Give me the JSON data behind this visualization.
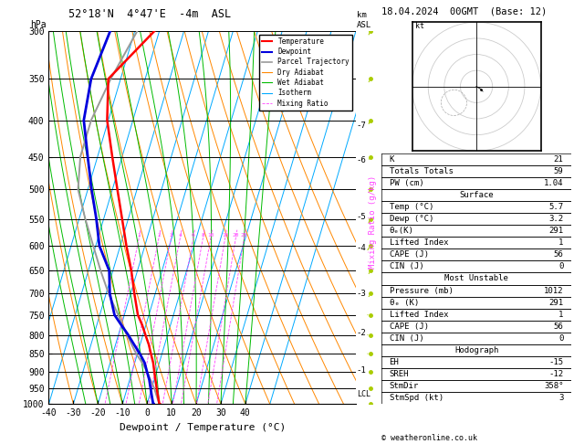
{
  "title_left": "52°18'N  4°47'E  -4m  ASL",
  "title_right": "18.04.2024  00GMT  (Base: 12)",
  "xlabel": "Dewpoint / Temperature (°C)",
  "pressure_levels": [
    300,
    350,
    400,
    450,
    500,
    550,
    600,
    650,
    700,
    750,
    800,
    850,
    900,
    950,
    1000
  ],
  "mixing_ratio_color": "#ff44ff",
  "isotherm_color": "#00aaff",
  "dry_adiabat_color": "#ff8800",
  "wet_adiabat_color": "#00bb00",
  "temp_color": "#ff0000",
  "dewp_color": "#0000dd",
  "parcel_color": "#999999",
  "temp_profile": {
    "pressure": [
      1012,
      1000,
      975,
      950,
      925,
      900,
      875,
      850,
      825,
      800,
      775,
      750,
      700,
      650,
      600,
      550,
      500,
      450,
      400,
      350,
      300
    ],
    "temperature": [
      5.7,
      5.0,
      3.5,
      2.0,
      0.5,
      -1.0,
      -2.5,
      -4.5,
      -6.5,
      -9.0,
      -11.5,
      -14.5,
      -18.5,
      -22.5,
      -27.5,
      -32.5,
      -38.0,
      -44.0,
      -50.5,
      -55.0,
      -42.0
    ]
  },
  "dewp_profile": {
    "pressure": [
      1012,
      1000,
      975,
      950,
      925,
      900,
      875,
      850,
      825,
      800,
      775,
      750,
      700,
      650,
      600,
      550,
      500,
      450,
      400,
      350,
      300
    ],
    "temperature": [
      3.2,
      2.5,
      1.0,
      -0.5,
      -2.0,
      -4.0,
      -6.0,
      -9.0,
      -12.5,
      -16.0,
      -20.0,
      -24.0,
      -28.5,
      -31.5,
      -38.5,
      -43.0,
      -48.5,
      -54.0,
      -60.0,
      -62.0,
      -60.0
    ]
  },
  "parcel_profile": {
    "pressure": [
      1012,
      1000,
      975,
      950,
      925,
      900,
      875,
      850,
      825,
      800,
      775,
      750,
      700,
      650,
      600,
      550,
      500,
      450,
      400,
      350,
      300
    ],
    "temperature": [
      5.7,
      5.0,
      3.0,
      1.0,
      -1.5,
      -4.0,
      -7.0,
      -10.5,
      -13.5,
      -16.5,
      -19.5,
      -22.5,
      -29.0,
      -35.0,
      -41.0,
      -47.5,
      -54.0,
      -57.0,
      -57.0,
      -54.0,
      -49.0
    ]
  },
  "km_pressures": [
    898,
    795,
    700,
    605,
    547,
    455,
    407
  ],
  "km_labels": [
    "1",
    "2",
    "3",
    "4",
    "5",
    "6",
    "7"
  ],
  "lcl_pressure": 968,
  "mixing_ratio_values": [
    1,
    2,
    3,
    4,
    6,
    8,
    10,
    15,
    20,
    25
  ],
  "info": {
    "K": "21",
    "Totals Totals": "59",
    "PW (cm)": "1.04",
    "surf_temp": "5.7",
    "surf_dewp": "3.2",
    "surf_thetae": "291",
    "surf_li": "1",
    "surf_cape": "56",
    "surf_cin": "0",
    "mu_pres": "1012",
    "mu_thetae": "291",
    "mu_li": "1",
    "mu_cape": "56",
    "mu_cin": "0",
    "hodo_eh": "-15",
    "hodo_sreh": "-12",
    "hodo_stmdir": "358°",
    "hodo_stmspd": "3"
  },
  "wind_pressures": [
    300,
    350,
    400,
    450,
    500,
    550,
    600,
    650,
    700,
    750,
    800,
    850,
    900,
    950,
    1000
  ],
  "wind_u": [
    8,
    9,
    8,
    7,
    6,
    5,
    4,
    3,
    3,
    2,
    2,
    2,
    1,
    1,
    1
  ],
  "wind_v": [
    3,
    3,
    3,
    2,
    2,
    2,
    1,
    1,
    1,
    0,
    0,
    0,
    0,
    0,
    0
  ]
}
